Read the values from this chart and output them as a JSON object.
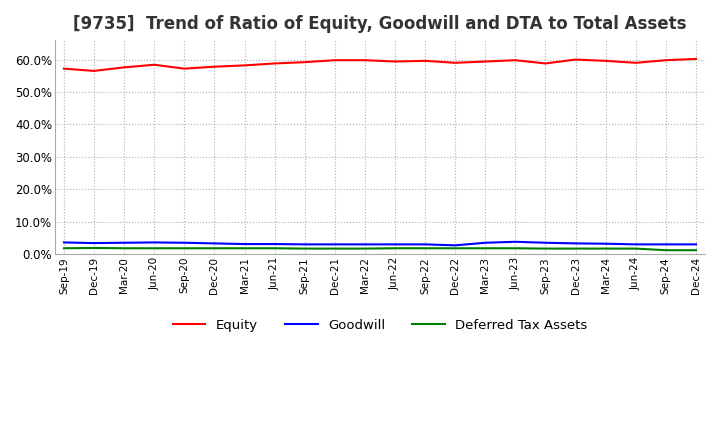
{
  "title": "[9735]  Trend of Ratio of Equity, Goodwill and DTA to Total Assets",
  "title_fontsize": 12,
  "ylim": [
    0.0,
    0.66
  ],
  "yticks": [
    0.0,
    0.1,
    0.2,
    0.3,
    0.4,
    0.5,
    0.6
  ],
  "x_labels": [
    "Sep-19",
    "Dec-19",
    "Mar-20",
    "Jun-20",
    "Sep-20",
    "Dec-20",
    "Mar-21",
    "Jun-21",
    "Sep-21",
    "Dec-21",
    "Mar-22",
    "Jun-22",
    "Sep-22",
    "Dec-22",
    "Mar-23",
    "Jun-23",
    "Sep-23",
    "Dec-23",
    "Mar-24",
    "Jun-24",
    "Sep-24",
    "Dec-24"
  ],
  "equity": [
    0.572,
    0.565,
    0.576,
    0.584,
    0.572,
    0.578,
    0.582,
    0.588,
    0.592,
    0.598,
    0.598,
    0.594,
    0.596,
    0.59,
    0.594,
    0.598,
    0.588,
    0.6,
    0.596,
    0.59,
    0.598,
    0.602
  ],
  "goodwill": [
    0.036,
    0.034,
    0.035,
    0.036,
    0.035,
    0.033,
    0.031,
    0.031,
    0.03,
    0.03,
    0.03,
    0.03,
    0.03,
    0.027,
    0.035,
    0.038,
    0.035,
    0.033,
    0.032,
    0.03,
    0.03,
    0.03
  ],
  "dta": [
    0.018,
    0.019,
    0.018,
    0.018,
    0.018,
    0.018,
    0.018,
    0.018,
    0.017,
    0.017,
    0.017,
    0.018,
    0.018,
    0.018,
    0.018,
    0.018,
    0.017,
    0.017,
    0.017,
    0.017,
    0.012,
    0.012
  ],
  "equity_color": "#ff0000",
  "goodwill_color": "#0000ff",
  "dta_color": "#008000",
  "background_color": "#ffffff",
  "plot_bg_color": "#ffffff",
  "grid_color": "#b0b0b0",
  "legend_labels": [
    "Equity",
    "Goodwill",
    "Deferred Tax Assets"
  ]
}
